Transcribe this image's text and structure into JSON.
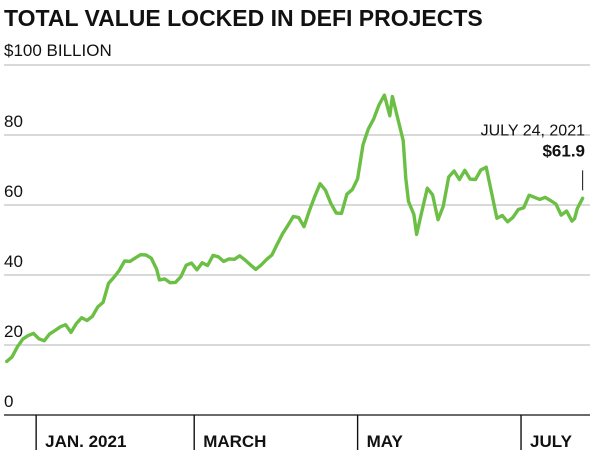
{
  "chart_data": {
    "type": "line",
    "title": "TOTAL VALUE LOCKED IN DEFI PROJECTS",
    "unit_label": "$100 BILLION",
    "ylim": [
      0,
      100
    ],
    "yticks": [
      0,
      20,
      40,
      60,
      80
    ],
    "x_range": [
      "2020-12-20",
      "2021-07-26"
    ],
    "month_ticks": [
      {
        "label": "JAN. 2021",
        "date": "2021-01-01"
      },
      {
        "label": "MARCH",
        "date": "2021-03-01"
      },
      {
        "label": "MAY",
        "date": "2021-05-01"
      },
      {
        "label": "JULY",
        "date": "2021-07-01"
      }
    ],
    "grid": true,
    "line_color": "#6cbf45",
    "series": [
      {
        "points": [
          [
            "2020-12-21",
            15.3
          ],
          [
            "2020-12-23",
            16.6
          ],
          [
            "2020-12-25",
            19.5
          ],
          [
            "2020-12-27",
            21.7
          ],
          [
            "2020-12-29",
            22.7
          ],
          [
            "2020-12-31",
            23.3
          ],
          [
            "2021-01-02",
            21.8
          ],
          [
            "2021-01-04",
            21.2
          ],
          [
            "2021-01-06",
            23.1
          ],
          [
            "2021-01-08",
            24.1
          ],
          [
            "2021-01-10",
            25.2
          ],
          [
            "2021-01-12",
            25.8
          ],
          [
            "2021-01-14",
            23.6
          ],
          [
            "2021-01-16",
            26.1
          ],
          [
            "2021-01-18",
            27.8
          ],
          [
            "2021-01-20",
            27.0
          ],
          [
            "2021-01-22",
            28.2
          ],
          [
            "2021-01-24",
            30.9
          ],
          [
            "2021-01-26",
            32.2
          ],
          [
            "2021-01-28",
            37.6
          ],
          [
            "2021-01-30",
            39.3
          ],
          [
            "2021-02-01",
            41.3
          ],
          [
            "2021-02-03",
            44.0
          ],
          [
            "2021-02-05",
            43.9
          ],
          [
            "2021-02-07",
            44.9
          ],
          [
            "2021-02-09",
            45.8
          ],
          [
            "2021-02-11",
            45.7
          ],
          [
            "2021-02-13",
            44.8
          ],
          [
            "2021-02-15",
            41.6
          ],
          [
            "2021-02-16",
            38.6
          ],
          [
            "2021-02-18",
            38.9
          ],
          [
            "2021-02-20",
            37.8
          ],
          [
            "2021-02-22",
            37.9
          ],
          [
            "2021-02-24",
            39.5
          ],
          [
            "2021-02-26",
            42.8
          ],
          [
            "2021-02-28",
            43.4
          ],
          [
            "2021-03-02",
            41.5
          ],
          [
            "2021-03-04",
            43.5
          ],
          [
            "2021-03-06",
            42.7
          ],
          [
            "2021-03-08",
            45.6
          ],
          [
            "2021-03-10",
            45.2
          ],
          [
            "2021-03-12",
            43.9
          ],
          [
            "2021-03-14",
            44.6
          ],
          [
            "2021-03-16",
            44.5
          ],
          [
            "2021-03-18",
            45.5
          ],
          [
            "2021-03-20",
            44.3
          ],
          [
            "2021-03-22",
            42.9
          ],
          [
            "2021-03-24",
            41.6
          ],
          [
            "2021-03-26",
            42.9
          ],
          [
            "2021-03-28",
            44.4
          ],
          [
            "2021-03-30",
            45.7
          ],
          [
            "2021-04-01",
            48.8
          ],
          [
            "2021-04-03",
            51.8
          ],
          [
            "2021-04-05",
            54.2
          ],
          [
            "2021-04-07",
            56.7
          ],
          [
            "2021-04-09",
            56.4
          ],
          [
            "2021-04-11",
            53.8
          ],
          [
            "2021-04-13",
            58.4
          ],
          [
            "2021-04-15",
            62.5
          ],
          [
            "2021-04-17",
            66.1
          ],
          [
            "2021-04-19",
            64.2
          ],
          [
            "2021-04-21",
            60.5
          ],
          [
            "2021-04-23",
            57.7
          ],
          [
            "2021-04-25",
            57.6
          ],
          [
            "2021-04-27",
            63.1
          ],
          [
            "2021-04-29",
            64.4
          ],
          [
            "2021-05-01",
            67.5
          ],
          [
            "2021-05-03",
            77.2
          ],
          [
            "2021-05-05",
            81.7
          ],
          [
            "2021-05-07",
            84.6
          ],
          [
            "2021-05-09",
            88.6
          ],
          [
            "2021-05-11",
            91.4
          ],
          [
            "2021-05-13",
            85.5
          ],
          [
            "2021-05-14",
            91.0
          ],
          [
            "2021-05-16",
            84.7
          ],
          [
            "2021-05-18",
            78.4
          ],
          [
            "2021-05-19",
            67.6
          ],
          [
            "2021-05-20",
            61.0
          ],
          [
            "2021-05-22",
            57.3
          ],
          [
            "2021-05-23",
            51.6
          ],
          [
            "2021-05-25",
            58.2
          ],
          [
            "2021-05-27",
            64.8
          ],
          [
            "2021-05-29",
            62.9
          ],
          [
            "2021-05-31",
            55.8
          ],
          [
            "2021-06-02",
            59.7
          ],
          [
            "2021-06-04",
            68.0
          ],
          [
            "2021-06-06",
            69.7
          ],
          [
            "2021-06-08",
            67.3
          ],
          [
            "2021-06-10",
            69.9
          ],
          [
            "2021-06-12",
            67.4
          ],
          [
            "2021-06-14",
            67.3
          ],
          [
            "2021-06-16",
            70.0
          ],
          [
            "2021-06-18",
            70.8
          ],
          [
            "2021-06-20",
            63.5
          ],
          [
            "2021-06-22",
            56.2
          ],
          [
            "2021-06-24",
            57.0
          ],
          [
            "2021-06-26",
            55.2
          ],
          [
            "2021-06-28",
            56.5
          ],
          [
            "2021-06-30",
            58.7
          ],
          [
            "2021-07-02",
            59.2
          ],
          [
            "2021-07-04",
            62.8
          ],
          [
            "2021-07-06",
            62.2
          ],
          [
            "2021-07-08",
            61.6
          ],
          [
            "2021-07-10",
            62.2
          ],
          [
            "2021-07-12",
            61.3
          ],
          [
            "2021-07-14",
            60.3
          ],
          [
            "2021-07-16",
            57.1
          ],
          [
            "2021-07-18",
            58.3
          ],
          [
            "2021-07-20",
            55.4
          ],
          [
            "2021-07-21",
            56.1
          ],
          [
            "2021-07-22",
            59.0
          ],
          [
            "2021-07-24",
            61.9
          ]
        ]
      }
    ],
    "annotation": {
      "date_label": "JULY 24, 2021",
      "value_label": "$61.9",
      "date": "2021-07-24",
      "value": 61.9
    }
  }
}
